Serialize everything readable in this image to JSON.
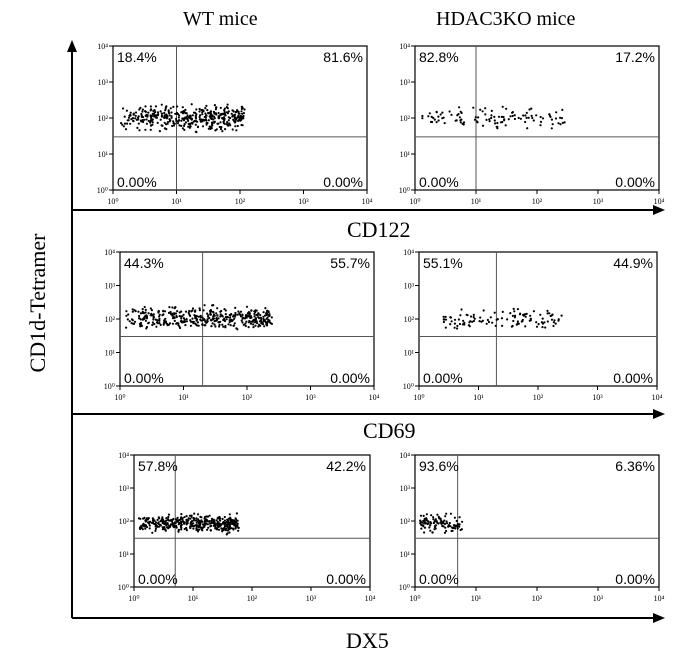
{
  "column_titles": [
    "WT mice",
    "HDAC3KO mice"
  ],
  "y_axis_label": "CD1d-Tetramer",
  "row_labels": [
    "CD122",
    "CD69",
    "DX5"
  ],
  "tick_labels": [
    "10⁰",
    "10¹",
    "10²",
    "10³",
    "10⁴"
  ],
  "chart_data": [
    {
      "type": "scatter",
      "row": "CD122",
      "column": "WT mice",
      "scale": "log",
      "xlim": [
        1,
        10000
      ],
      "ylim": [
        1,
        10000
      ],
      "gate": {
        "x": 10,
        "y": 30
      },
      "quadrants": {
        "top_left": "18.4%",
        "top_right": "81.6%",
        "bottom_left": "0.00%",
        "bottom_right": "0.00%"
      },
      "cloud": {
        "x_range": [
          1.3,
          120
        ],
        "y_range": [
          35,
          300
        ],
        "density": "high"
      }
    },
    {
      "type": "scatter",
      "row": "CD122",
      "column": "HDAC3KO mice",
      "scale": "log",
      "xlim": [
        1,
        10000
      ],
      "ylim": [
        1,
        10000
      ],
      "gate": {
        "x": 10,
        "y": 30
      },
      "quadrants": {
        "top_left": "82.8%",
        "top_right": "17.2%",
        "bottom_left": "0.00%",
        "bottom_right": "0.00%"
      },
      "cloud": {
        "x_range": [
          1.2,
          300
        ],
        "y_range": [
          40,
          250
        ],
        "density": "low"
      }
    },
    {
      "type": "scatter",
      "row": "CD69",
      "column": "WT mice",
      "scale": "log",
      "xlim": [
        1,
        10000
      ],
      "ylim": [
        1,
        10000
      ],
      "gate": {
        "x": 20,
        "y": 30
      },
      "quadrants": {
        "top_left": "44.3%",
        "top_right": "55.7%",
        "bottom_left": "0.00%",
        "bottom_right": "0.00%"
      },
      "cloud": {
        "x_range": [
          1.2,
          250
        ],
        "y_range": [
          35,
          300
        ],
        "density": "high"
      }
    },
    {
      "type": "scatter",
      "row": "CD69",
      "column": "HDAC3KO mice",
      "scale": "log",
      "xlim": [
        1,
        10000
      ],
      "ylim": [
        1,
        10000
      ],
      "gate": {
        "x": 20,
        "y": 30
      },
      "quadrants": {
        "top_left": "55.1%",
        "top_right": "44.9%",
        "bottom_left": "0.00%",
        "bottom_right": "0.00%"
      },
      "cloud": {
        "x_range": [
          2.5,
          250
        ],
        "y_range": [
          40,
          250
        ],
        "density": "low"
      }
    },
    {
      "type": "scatter",
      "row": "DX5",
      "column": "WT mice",
      "scale": "log",
      "xlim": [
        1,
        10000
      ],
      "ylim": [
        1,
        10000
      ],
      "gate": {
        "x": 5,
        "y": 30
      },
      "quadrants": {
        "top_left": "57.8%",
        "top_right": "42.2%",
        "bottom_left": "0.00%",
        "bottom_right": "0.00%"
      },
      "cloud": {
        "x_range": [
          1.2,
          60
        ],
        "y_range": [
          35,
          200
        ],
        "density": "high"
      }
    },
    {
      "type": "scatter",
      "row": "DX5",
      "column": "HDAC3KO mice",
      "scale": "log",
      "xlim": [
        1,
        10000
      ],
      "ylim": [
        1,
        10000
      ],
      "gate": {
        "x": 5,
        "y": 30
      },
      "quadrants": {
        "top_left": "93.6%",
        "top_right": "6.36%",
        "bottom_left": "0.00%",
        "bottom_right": "0.00%"
      },
      "cloud": {
        "x_range": [
          1.2,
          6
        ],
        "y_range": [
          35,
          200
        ],
        "density": "low"
      }
    }
  ]
}
